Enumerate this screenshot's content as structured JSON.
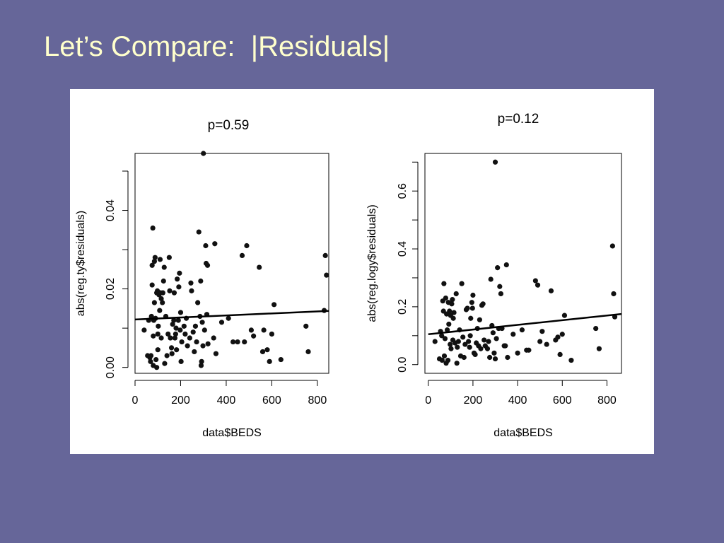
{
  "slide": {
    "title": "Let’s Compare:  |Residuals|",
    "title_color": "#ffffcc",
    "background_color": "#666699"
  },
  "chart_data": [
    {
      "type": "scatter",
      "title": "p=0.59",
      "xlabel": "data$BEDS",
      "ylabel": "abs(reg.ty$residuals)",
      "xlim": [
        0,
        850
      ],
      "ylim": [
        -0.0015,
        0.0545
      ],
      "xticks": [
        0,
        200,
        400,
        600,
        800
      ],
      "yticks": [
        0.0,
        0.02,
        0.04
      ],
      "ytick_labels": [
        "0.00",
        "0.02",
        "0.04"
      ],
      "ytick_minor": [
        0.01,
        0.03,
        0.05
      ],
      "trend_line": {
        "x": [
          0,
          850
        ],
        "y": [
          0.0122,
          0.0144
        ]
      },
      "points": [
        [
          40,
          0.0095
        ],
        [
          55,
          0.003
        ],
        [
          60,
          0.012
        ],
        [
          65,
          0.0025
        ],
        [
          68,
          0.0015
        ],
        [
          70,
          0.003
        ],
        [
          72,
          0.013
        ],
        [
          75,
          0.026
        ],
        [
          75,
          0.021
        ],
        [
          78,
          0.0355
        ],
        [
          80,
          0.008
        ],
        [
          80,
          0.0005
        ],
        [
          82,
          0.012
        ],
        [
          85,
          0.027
        ],
        [
          85,
          0.0165
        ],
        [
          88,
          0.028
        ],
        [
          90,
          0.0125
        ],
        [
          92,
          0.002
        ],
        [
          95,
          0.019
        ],
        [
          95,
          0.0
        ],
        [
          98,
          0.0195
        ],
        [
          100,
          0.0085
        ],
        [
          100,
          0.0045
        ],
        [
          102,
          0.0105
        ],
        [
          105,
          0.0185
        ],
        [
          108,
          0.0145
        ],
        [
          110,
          0.0275
        ],
        [
          112,
          0.019
        ],
        [
          115,
          0.0075
        ],
        [
          115,
          0.0175
        ],
        [
          120,
          0.0165
        ],
        [
          122,
          0.019
        ],
        [
          125,
          0.022
        ],
        [
          128,
          0.0255
        ],
        [
          130,
          0.001
        ],
        [
          135,
          0.013
        ],
        [
          140,
          0.003
        ],
        [
          145,
          0.0085
        ],
        [
          150,
          0.028
        ],
        [
          152,
          0.0195
        ],
        [
          155,
          0.0075
        ],
        [
          160,
          0.005
        ],
        [
          162,
          0.0035
        ],
        [
          165,
          0.011
        ],
        [
          170,
          0.012
        ],
        [
          172,
          0.019
        ],
        [
          175,
          0.0075
        ],
        [
          178,
          0.0085
        ],
        [
          180,
          0.01
        ],
        [
          182,
          0.0045
        ],
        [
          185,
          0.0225
        ],
        [
          190,
          0.012
        ],
        [
          192,
          0.0205
        ],
        [
          195,
          0.024
        ],
        [
          198,
          0.0095
        ],
        [
          200,
          0.014
        ],
        [
          202,
          0.0015
        ],
        [
          205,
          0.0065
        ],
        [
          215,
          0.0105
        ],
        [
          220,
          0.0085
        ],
        [
          225,
          0.0125
        ],
        [
          230,
          0.0055
        ],
        [
          240,
          0.0075
        ],
        [
          245,
          0.0215
        ],
        [
          248,
          0.0195
        ],
        [
          255,
          0.009
        ],
        [
          260,
          0.004
        ],
        [
          265,
          0.0105
        ],
        [
          270,
          0.0065
        ],
        [
          275,
          0.0165
        ],
        [
          280,
          0.0345
        ],
        [
          285,
          0.013
        ],
        [
          288,
          0.022
        ],
        [
          290,
          0.0005
        ],
        [
          292,
          0.0015
        ],
        [
          295,
          0.0115
        ],
        [
          298,
          0.0055
        ],
        [
          300,
          0.0545
        ],
        [
          305,
          0.0095
        ],
        [
          310,
          0.031
        ],
        [
          312,
          0.0265
        ],
        [
          315,
          0.0135
        ],
        [
          318,
          0.026
        ],
        [
          320,
          0.006
        ],
        [
          345,
          0.0075
        ],
        [
          350,
          0.0315
        ],
        [
          355,
          0.0035
        ],
        [
          380,
          0.0115
        ],
        [
          410,
          0.0125
        ],
        [
          430,
          0.0065
        ],
        [
          450,
          0.0065
        ],
        [
          470,
          0.0285
        ],
        [
          480,
          0.0065
        ],
        [
          490,
          0.031
        ],
        [
          510,
          0.0095
        ],
        [
          520,
          0.008
        ],
        [
          545,
          0.0255
        ],
        [
          560,
          0.004
        ],
        [
          565,
          0.0095
        ],
        [
          580,
          0.0045
        ],
        [
          590,
          0.0015
        ],
        [
          600,
          0.0085
        ],
        [
          610,
          0.016
        ],
        [
          640,
          0.002
        ],
        [
          750,
          0.0105
        ],
        [
          760,
          0.004
        ],
        [
          830,
          0.0145
        ],
        [
          835,
          0.0285
        ],
        [
          840,
          0.0235
        ]
      ]
    },
    {
      "type": "scatter",
      "title": "p=0.12",
      "xlabel": "data$BEDS",
      "ylabel": "abs(reg.logy$residuals)",
      "xlim": [
        -15,
        865
      ],
      "ylim": [
        -0.03,
        0.73
      ],
      "xticks": [
        0,
        200,
        400,
        600,
        800
      ],
      "yticks": [
        0.0,
        0.2,
        0.4,
        0.6
      ],
      "ytick_labels": [
        "0.0",
        "0.2",
        "0.4",
        "0.6"
      ],
      "ytick_minor": [
        0.1,
        0.3,
        0.5,
        0.7
      ],
      "trend_line": {
        "x": [
          0,
          865
        ],
        "y": [
          0.105,
          0.175
        ]
      },
      "points": [
        [
          30,
          0.08
        ],
        [
          50,
          0.02
        ],
        [
          55,
          0.115
        ],
        [
          60,
          0.1
        ],
        [
          62,
          0.015
        ],
        [
          65,
          0.22
        ],
        [
          68,
          0.185
        ],
        [
          70,
          0.28
        ],
        [
          72,
          0.03
        ],
        [
          75,
          0.09
        ],
        [
          78,
          0.23
        ],
        [
          80,
          0.005
        ],
        [
          82,
          0.175
        ],
        [
          85,
          0.12
        ],
        [
          88,
          0.015
        ],
        [
          90,
          0.215
        ],
        [
          92,
          0.14
        ],
        [
          95,
          0.185
        ],
        [
          98,
          0.07
        ],
        [
          100,
          0.17
        ],
        [
          102,
          0.055
        ],
        [
          105,
          0.21
        ],
        [
          108,
          0.225
        ],
        [
          110,
          0.085
        ],
        [
          112,
          0.16
        ],
        [
          115,
          0.18
        ],
        [
          120,
          0.075
        ],
        [
          125,
          0.245
        ],
        [
          128,
          0.005
        ],
        [
          130,
          0.06
        ],
        [
          135,
          0.08
        ],
        [
          140,
          0.12
        ],
        [
          145,
          0.03
        ],
        [
          150,
          0.28
        ],
        [
          155,
          0.095
        ],
        [
          160,
          0.025
        ],
        [
          165,
          0.07
        ],
        [
          170,
          0.19
        ],
        [
          175,
          0.195
        ],
        [
          180,
          0.08
        ],
        [
          185,
          0.06
        ],
        [
          188,
          0.1
        ],
        [
          190,
          0.16
        ],
        [
          195,
          0.215
        ],
        [
          198,
          0.195
        ],
        [
          200,
          0.24
        ],
        [
          205,
          0.04
        ],
        [
          210,
          0.035
        ],
        [
          215,
          0.075
        ],
        [
          220,
          0.125
        ],
        [
          225,
          0.065
        ],
        [
          230,
          0.155
        ],
        [
          235,
          0.055
        ],
        [
          240,
          0.205
        ],
        [
          245,
          0.21
        ],
        [
          250,
          0.085
        ],
        [
          255,
          0.065
        ],
        [
          265,
          0.055
        ],
        [
          270,
          0.08
        ],
        [
          275,
          0.025
        ],
        [
          280,
          0.295
        ],
        [
          285,
          0.135
        ],
        [
          290,
          0.11
        ],
        [
          295,
          0.04
        ],
        [
          300,
          0.02
        ],
        [
          305,
          0.09
        ],
        [
          310,
          0.335
        ],
        [
          315,
          0.125
        ],
        [
          320,
          0.27
        ],
        [
          325,
          0.245
        ],
        [
          330,
          0.125
        ],
        [
          340,
          0.065
        ],
        [
          345,
          0.065
        ],
        [
          350,
          0.345
        ],
        [
          355,
          0.025
        ],
        [
          380,
          0.105
        ],
        [
          400,
          0.04
        ],
        [
          420,
          0.12
        ],
        [
          440,
          0.05
        ],
        [
          450,
          0.05
        ],
        [
          480,
          0.29
        ],
        [
          490,
          0.275
        ],
        [
          500,
          0.08
        ],
        [
          510,
          0.115
        ],
        [
          530,
          0.07
        ],
        [
          550,
          0.255
        ],
        [
          570,
          0.085
        ],
        [
          580,
          0.095
        ],
        [
          590,
          0.035
        ],
        [
          600,
          0.105
        ],
        [
          610,
          0.17
        ],
        [
          640,
          0.015
        ],
        [
          750,
          0.125
        ],
        [
          765,
          0.055
        ],
        [
          825,
          0.41
        ],
        [
          830,
          0.245
        ],
        [
          835,
          0.165
        ],
        [
          300,
          0.7
        ]
      ]
    }
  ]
}
